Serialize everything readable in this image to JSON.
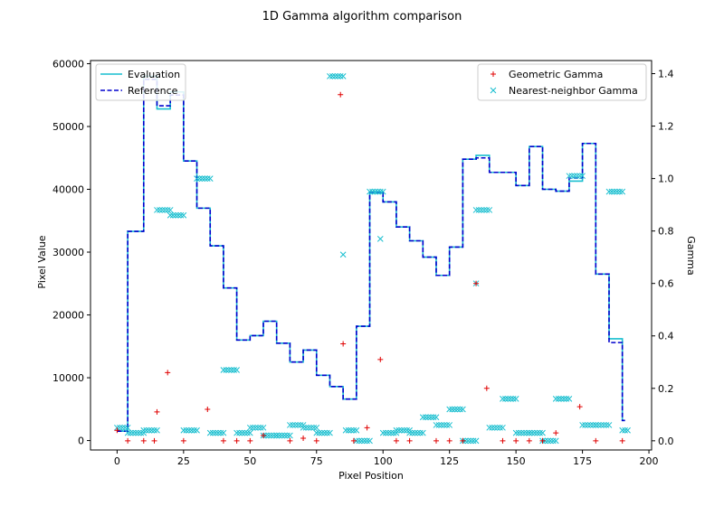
{
  "chart_data": {
    "type": "line",
    "title": "1D Gamma algorithm comparison",
    "xlabel": "Pixel Position",
    "ylabel": "Pixel Value",
    "y2label": "Gamma",
    "xlim": [
      -10,
      201
    ],
    "ylim": [
      -1500,
      60500
    ],
    "y2lim": [
      -0.035,
      1.45
    ],
    "xticks": [
      0,
      25,
      50,
      75,
      100,
      125,
      150,
      175,
      200
    ],
    "yticks": [
      0,
      10000,
      20000,
      30000,
      40000,
      50000,
      60000
    ],
    "y2ticks": [
      0.0,
      0.2,
      0.4,
      0.6,
      0.8,
      1.0,
      1.2,
      1.4
    ],
    "legend_left": {
      "placement": "top-left",
      "entries": [
        "Evaluation",
        "Reference"
      ]
    },
    "legend_right": {
      "placement": "top-right",
      "entries": [
        "Geometric Gamma",
        "Nearest-neighbor Gamma"
      ]
    },
    "colors": {
      "evaluation": "#17becf",
      "reference": "#0000cd",
      "geometric": "#e00000",
      "nearest": "#17becf"
    },
    "evaluation_series": {
      "name": "Evaluation",
      "steps": [
        [
          0,
          1500
        ],
        [
          4,
          33300
        ],
        [
          10,
          58000
        ],
        [
          15,
          52800
        ],
        [
          20,
          55500
        ],
        [
          25,
          44500
        ],
        [
          30,
          37000
        ],
        [
          35,
          31000
        ],
        [
          40,
          24300
        ],
        [
          45,
          16000
        ],
        [
          50,
          16700
        ],
        [
          55,
          19000
        ],
        [
          60,
          15500
        ],
        [
          65,
          12500
        ],
        [
          70,
          14400
        ],
        [
          75,
          10400
        ],
        [
          80,
          8600
        ],
        [
          85,
          6600
        ],
        [
          90,
          18200
        ],
        [
          95,
          39500
        ],
        [
          100,
          38000
        ],
        [
          105,
          34000
        ],
        [
          110,
          31800
        ],
        [
          115,
          29200
        ],
        [
          120,
          26300
        ],
        [
          125,
          30800
        ],
        [
          130,
          44800
        ],
        [
          135,
          45400
        ],
        [
          140,
          42700
        ],
        [
          150,
          40600
        ],
        [
          155,
          46800
        ],
        [
          160,
          40000
        ],
        [
          165,
          39700
        ],
        [
          170,
          41300
        ],
        [
          175,
          47300
        ],
        [
          180,
          26500
        ],
        [
          185,
          16200
        ],
        [
          190,
          3200
        ],
        [
          191,
          3200
        ]
      ]
    },
    "reference_series": {
      "name": "Reference",
      "steps": [
        [
          0,
          1500
        ],
        [
          4,
          33300
        ],
        [
          10,
          57500
        ],
        [
          15,
          53300
        ],
        [
          20,
          55000
        ],
        [
          25,
          44500
        ],
        [
          30,
          37000
        ],
        [
          35,
          31000
        ],
        [
          40,
          24300
        ],
        [
          45,
          16000
        ],
        [
          50,
          16700
        ],
        [
          55,
          19000
        ],
        [
          60,
          15500
        ],
        [
          65,
          12500
        ],
        [
          70,
          14400
        ],
        [
          75,
          10400
        ],
        [
          80,
          8600
        ],
        [
          85,
          6600
        ],
        [
          90,
          18200
        ],
        [
          95,
          39500
        ],
        [
          100,
          38000
        ],
        [
          105,
          34000
        ],
        [
          110,
          31800
        ],
        [
          115,
          29200
        ],
        [
          120,
          26300
        ],
        [
          125,
          30800
        ],
        [
          130,
          44800
        ],
        [
          135,
          45000
        ],
        [
          140,
          42700
        ],
        [
          150,
          40600
        ],
        [
          155,
          46800
        ],
        [
          160,
          40000
        ],
        [
          165,
          39700
        ],
        [
          170,
          41800
        ],
        [
          175,
          47300
        ],
        [
          180,
          26500
        ],
        [
          185,
          15600
        ],
        [
          190,
          3200
        ],
        [
          191,
          3200
        ]
      ]
    },
    "geometric_gamma": {
      "name": "Geometric Gamma",
      "x": [
        0,
        4,
        10,
        14,
        15,
        19,
        25,
        34,
        40,
        45,
        50,
        55,
        65,
        70,
        75,
        84,
        85,
        89,
        94,
        99,
        105,
        110,
        120,
        125,
        130,
        135,
        139,
        145,
        150,
        155,
        160,
        165,
        174,
        180,
        190
      ],
      "y": [
        0.04,
        0.0,
        0.0,
        0.0,
        0.11,
        0.26,
        0.0,
        0.12,
        0.0,
        0.0,
        0.0,
        0.02,
        0.0,
        0.01,
        0.0,
        1.32,
        0.37,
        0.0,
        0.05,
        0.31,
        0.0,
        0.0,
        0.0,
        0.0,
        0.0,
        0.6,
        0.2,
        0.0,
        0.0,
        0.0,
        0.0,
        0.03,
        0.13,
        0.0,
        0.0
      ]
    },
    "nearest_gamma": {
      "name": "Nearest-neighbor Gamma",
      "segments": [
        [
          0,
          4,
          0.05
        ],
        [
          4,
          10,
          0.03
        ],
        [
          10,
          15,
          0.04
        ],
        [
          15,
          20,
          0.88
        ],
        [
          20,
          25,
          0.86
        ],
        [
          25,
          30,
          0.04
        ],
        [
          30,
          35,
          1.0
        ],
        [
          35,
          40,
          0.03
        ],
        [
          40,
          45,
          0.27
        ],
        [
          45,
          50,
          0.03
        ],
        [
          50,
          55,
          0.05
        ],
        [
          55,
          60,
          0.02
        ],
        [
          60,
          65,
          0.02
        ],
        [
          65,
          70,
          0.06
        ],
        [
          70,
          75,
          0.05
        ],
        [
          75,
          80,
          0.03
        ],
        [
          80,
          85,
          1.39
        ],
        [
          86,
          90,
          0.04
        ],
        [
          90,
          95,
          0.0
        ],
        [
          95,
          100,
          0.95
        ],
        [
          100,
          105,
          0.03
        ],
        [
          105,
          110,
          0.04
        ],
        [
          110,
          115,
          0.03
        ],
        [
          115,
          120,
          0.09
        ],
        [
          120,
          125,
          0.06
        ],
        [
          125,
          130,
          0.12
        ],
        [
          130,
          135,
          0.0
        ],
        [
          135,
          140,
          0.88
        ],
        [
          140,
          145,
          0.05
        ],
        [
          145,
          150,
          0.16
        ],
        [
          150,
          155,
          0.03
        ],
        [
          155,
          160,
          0.03
        ],
        [
          160,
          165,
          0.0
        ],
        [
          165,
          170,
          0.16
        ],
        [
          170,
          175,
          1.01
        ],
        [
          175,
          180,
          0.06
        ],
        [
          180,
          185,
          0.06
        ],
        [
          185,
          190,
          0.95
        ],
        [
          190,
          192,
          0.04
        ]
      ],
      "singles": [
        [
          85,
          0.71
        ],
        [
          99,
          0.77
        ],
        [
          135,
          0.6
        ]
      ]
    }
  }
}
